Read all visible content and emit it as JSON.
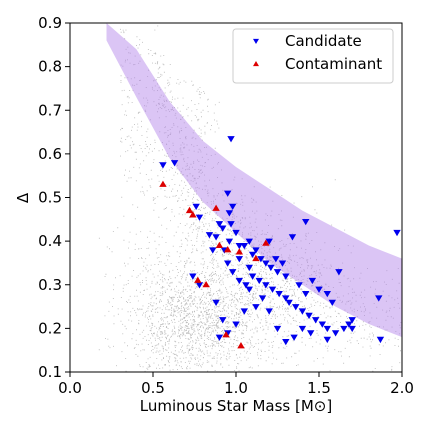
{
  "chart_data": {
    "type": "scatter",
    "title": "",
    "xlabel": "Luminous Star Mass [M⊙]",
    "ylabel": "Δ",
    "xlim": [
      0.0,
      2.0
    ],
    "ylim": [
      0.1,
      0.9
    ],
    "xticks": [
      "0.0",
      "0.5",
      "1.0",
      "1.5",
      "2.0"
    ],
    "yticks": [
      "0.1",
      "0.2",
      "0.3",
      "0.4",
      "0.5",
      "0.6",
      "0.7",
      "0.8",
      "0.9"
    ],
    "grid": false,
    "legend_position": "top-right",
    "background_population": {
      "color": "#808080",
      "description_visible": false
    },
    "band": {
      "color": "#b07ee8",
      "upper": [
        [
          0.22,
          0.9
        ],
        [
          0.4,
          0.84
        ],
        [
          0.6,
          0.72
        ],
        [
          0.8,
          0.63
        ],
        [
          1.0,
          0.57
        ],
        [
          1.2,
          0.52
        ],
        [
          1.4,
          0.47
        ],
        [
          1.6,
          0.43
        ],
        [
          1.8,
          0.39
        ],
        [
          2.0,
          0.36
        ]
      ],
      "lower": [
        [
          0.22,
          0.86
        ],
        [
          0.4,
          0.73
        ],
        [
          0.6,
          0.59
        ],
        [
          0.8,
          0.49
        ],
        [
          1.0,
          0.42
        ],
        [
          1.2,
          0.35
        ],
        [
          1.4,
          0.3
        ],
        [
          1.6,
          0.25
        ],
        [
          1.8,
          0.21
        ],
        [
          2.0,
          0.18
        ]
      ]
    },
    "series": [
      {
        "name": "Candidate",
        "marker": "tri-down",
        "color": "#0000ee",
        "points": [
          [
            0.56,
            0.575
          ],
          [
            0.63,
            0.58
          ],
          [
            0.97,
            0.635
          ],
          [
            0.76,
            0.48
          ],
          [
            0.78,
            0.455
          ],
          [
            0.9,
            0.44
          ],
          [
            0.95,
            0.51
          ],
          [
            0.96,
            0.465
          ],
          [
            0.98,
            0.48
          ],
          [
            0.92,
            0.43
          ],
          [
            0.97,
            0.44
          ],
          [
            1.0,
            0.42
          ],
          [
            1.02,
            0.39
          ],
          [
            0.88,
            0.41
          ],
          [
            0.84,
            0.415
          ],
          [
            0.86,
            0.38
          ],
          [
            0.93,
            0.38
          ],
          [
            0.96,
            0.4
          ],
          [
            1.05,
            0.39
          ],
          [
            1.08,
            0.4
          ],
          [
            1.1,
            0.37
          ],
          [
            1.12,
            0.38
          ],
          [
            1.15,
            0.36
          ],
          [
            1.18,
            0.35
          ],
          [
            1.21,
            0.34
          ],
          [
            1.25,
            0.33
          ],
          [
            1.3,
            0.32
          ],
          [
            1.34,
            0.41
          ],
          [
            1.42,
            0.445
          ],
          [
            0.95,
            0.35
          ],
          [
            0.98,
            0.33
          ],
          [
            1.02,
            0.31
          ],
          [
            1.06,
            0.3
          ],
          [
            1.1,
            0.32
          ],
          [
            1.14,
            0.31
          ],
          [
            1.18,
            0.3
          ],
          [
            1.22,
            0.29
          ],
          [
            1.26,
            0.28
          ],
          [
            1.3,
            0.27
          ],
          [
            1.32,
            0.26
          ],
          [
            1.36,
            0.25
          ],
          [
            1.4,
            0.24
          ],
          [
            1.44,
            0.23
          ],
          [
            1.48,
            0.22
          ],
          [
            1.52,
            0.21
          ],
          [
            1.55,
            0.2
          ],
          [
            1.6,
            0.19
          ],
          [
            1.65,
            0.2
          ],
          [
            1.68,
            0.21
          ],
          [
            1.7,
            0.22
          ],
          [
            1.55,
            0.28
          ],
          [
            1.58,
            0.26
          ],
          [
            1.62,
            0.33
          ],
          [
            1.38,
            0.3
          ],
          [
            1.42,
            0.28
          ],
          [
            1.46,
            0.31
          ],
          [
            1.5,
            0.29
          ],
          [
            1.35,
            0.18
          ],
          [
            1.4,
            0.2
          ],
          [
            1.45,
            0.19
          ],
          [
            1.3,
            0.17
          ],
          [
            1.25,
            0.2
          ],
          [
            1.2,
            0.24
          ],
          [
            1.16,
            0.27
          ],
          [
            1.12,
            0.25
          ],
          [
            0.88,
            0.26
          ],
          [
            0.92,
            0.22
          ],
          [
            0.95,
            0.19
          ],
          [
            0.9,
            0.18
          ],
          [
            1.0,
            0.21
          ],
          [
            1.05,
            0.24
          ],
          [
            1.08,
            0.29
          ],
          [
            0.74,
            0.32
          ],
          [
            0.78,
            0.3
          ],
          [
            1.86,
            0.27
          ],
          [
            1.87,
            0.175
          ],
          [
            1.97,
            0.42
          ],
          [
            1.55,
            0.175
          ],
          [
            1.7,
            0.2
          ],
          [
            1.2,
            0.4
          ],
          [
            1.24,
            0.36
          ],
          [
            1.28,
            0.35
          ],
          [
            1.02,
            0.36
          ],
          [
            1.08,
            0.34
          ]
        ]
      },
      {
        "name": "Contaminant",
        "marker": "tri-up",
        "color": "#dd0000",
        "points": [
          [
            0.56,
            0.53
          ],
          [
            0.72,
            0.47
          ],
          [
            0.74,
            0.46
          ],
          [
            0.88,
            0.475
          ],
          [
            0.9,
            0.39
          ],
          [
            0.95,
            0.38
          ],
          [
            1.02,
            0.375
          ],
          [
            1.12,
            0.36
          ],
          [
            0.77,
            0.31
          ],
          [
            0.82,
            0.3
          ],
          [
            0.94,
            0.185
          ],
          [
            1.03,
            0.16
          ],
          [
            1.18,
            0.395
          ]
        ]
      }
    ]
  }
}
